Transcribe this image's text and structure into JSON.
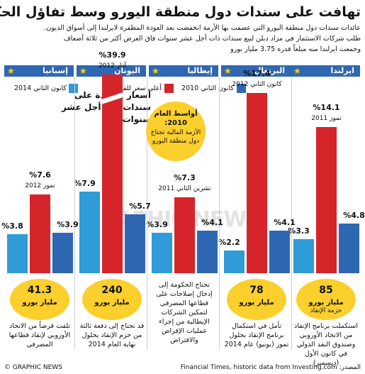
{
  "title": "تهافت على سندات دول منطقة اليورو وسط تفاؤل الحكومات",
  "subtitle_lines": [
    "عائدات سندات دول منطقة اليورو التي عصفت بها الأزمة انخفضت بعد العودة المظفرة لايرلندا إلى أسواق الديون.",
    "طلب شركات الاستثمار في مزاد دبلن لبيع سندات ذات أجل عشر سنوات فاق العرض أكثر من ثلاثة أضعاف",
    "وجمعت ايرلندا منه مبلغاً قدره 3.75 مليار يورو"
  ],
  "legend": {
    "jan2010": "كانون الثاني 2010",
    "peak": "أعلى سعر للفائدة",
    "jan2014": "كانون الثاني 2014"
  },
  "y_title": "أسعار الفائدة على سندات ذات أجل عشر سنوات",
  "colors": {
    "jan2010": "#2f67b3",
    "peak": "#d5252b",
    "jan2014": "#2f9bd7",
    "circle": "#fbcf2c"
  },
  "chart_data": {
    "type": "bar",
    "title": "تهافت على سندات دول منطقة اليورو وسط تفاؤل الحكومات",
    "ylabel": "أسعار الفائدة على سندات ذات أجل عشر سنوات",
    "categories": [
      "ايرلندا",
      "البرتغال",
      "إيطاليا",
      "اليونان",
      "إسبانيا"
    ],
    "series": [
      {
        "name": "كانون الثاني 2010",
        "values": [
          4.8,
          4.1,
          4.1,
          5.7,
          3.9
        ]
      },
      {
        "name": "أعلى سعر للفائدة",
        "values": [
          14.1,
          17.4,
          7.3,
          39.9,
          7.6
        ],
        "dates": [
          "تموز 2011",
          "كانون الثاني 2012",
          "تشرين الثاني 2011",
          "آذار 2012",
          "تموز 2012"
        ]
      },
      {
        "name": "كانون الثاني 2014",
        "values": [
          3.3,
          2.2,
          3.9,
          7.9,
          3.8
        ]
      }
    ],
    "value_labels": {
      "jan2010": [
        "%4.8",
        "%4.1",
        "%4.1",
        "%5.7",
        "%3.9"
      ],
      "peak": [
        "%14.1",
        "%17.4",
        "%7.3",
        "%39.9",
        "%7.6"
      ],
      "jan2014": [
        "%3.3",
        "%2.2",
        "%3.9",
        "%7.9",
        "%3.8"
      ]
    },
    "bailouts": [
      {
        "amount": "85",
        "unit": "مليار يورو",
        "extra": "حزمة الإنقاذ"
      },
      {
        "amount": "78",
        "unit": "مليار يورو",
        "extra": ""
      },
      {
        "amount": "",
        "unit": "",
        "extra": ""
      },
      {
        "amount": "240",
        "unit": "مليار يورو",
        "extra": ""
      },
      {
        "amount": "41.3",
        "unit": "مليار يورو",
        "extra": ""
      }
    ],
    "notes": [
      "استكملت برنامج الإنقاذ من الاتحاد الأوروبي وصندوق النقد الدولي في كانون الأول (ديسمبر)",
      "تأمل في استكمال برنامج الإنقاذ بحلول تموز (يونيو) عام 2014",
      "تحتاج الحكومة إلى إدخال إصلاحات على قطاعها المصرفي لتمكين الشركات الإيطالية من إجراء عمليات الإقراض والاقتراض",
      "قد تحتاج إلى دفعة ثالثة من حزم الإنقاذ بحلول نهاية العام 2014",
      "تلقت قرضاً من الاتحاد الأوروبي لإنقاذ قطاعها المصرفي"
    ],
    "annotation": {
      "head": "أواسط العام 2010:",
      "body": "الأزمة المالية تجتاح دول منطقة اليورو"
    }
  },
  "footer": {
    "source": "المصدر: Financial Times, historic data from Investing.com",
    "credit": "© GRAPHIC NEWS"
  },
  "watermark": "GRAPHIC NEWS"
}
